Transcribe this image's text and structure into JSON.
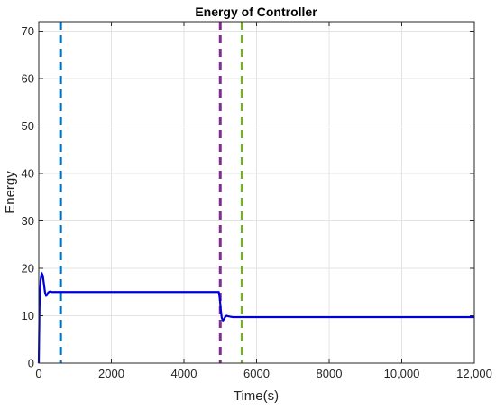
{
  "chart_data": {
    "type": "line",
    "title": "Energy of Controller",
    "xlabel": "Time(s)",
    "ylabel": "Energy",
    "xlim": [
      0,
      12000
    ],
    "ylim": [
      0,
      72
    ],
    "x_ticks": [
      0,
      2000,
      4000,
      6000,
      8000,
      10000,
      12000
    ],
    "x_tick_labels": [
      "0",
      "2000",
      "4000",
      "6000",
      "8000",
      "10,000",
      "12,000"
    ],
    "y_ticks": [
      0,
      10,
      20,
      30,
      40,
      50,
      60,
      70
    ],
    "y_tick_labels": [
      "0",
      "10",
      "20",
      "30",
      "40",
      "50",
      "60",
      "70"
    ],
    "grid": true,
    "series": [
      {
        "color": "#0000dd",
        "x": [
          0,
          20,
          50,
          80,
          110,
          140,
          170,
          200,
          230,
          260,
          300,
          350,
          400,
          500,
          600,
          1000,
          2000,
          3000,
          4000,
          4900,
          4960,
          4990,
          5010,
          5040,
          5070,
          5100,
          5130,
          5170,
          5220,
          5280,
          5350,
          5450,
          5600,
          6000,
          8000,
          10000,
          12000
        ],
        "y": [
          0,
          12.0,
          17.5,
          19.0,
          18.5,
          16.8,
          15.0,
          14.2,
          14.4,
          14.9,
          15.1,
          15.0,
          15.0,
          15.0,
          15.0,
          15.0,
          15.0,
          15.0,
          15.0,
          15.0,
          15.0,
          13.5,
          11.5,
          9.6,
          9.0,
          9.2,
          9.7,
          10.0,
          9.9,
          9.8,
          9.7,
          9.7,
          9.7,
          9.7,
          9.7,
          9.7,
          9.7
        ]
      }
    ],
    "vertical_lines": [
      {
        "x": 600,
        "color": "#0072bd",
        "style": "dashed"
      },
      {
        "x": 5000,
        "color": "#7e2f8e",
        "style": "dashed"
      },
      {
        "x": 5600,
        "color": "#77ac30",
        "style": "dashed"
      }
    ]
  }
}
